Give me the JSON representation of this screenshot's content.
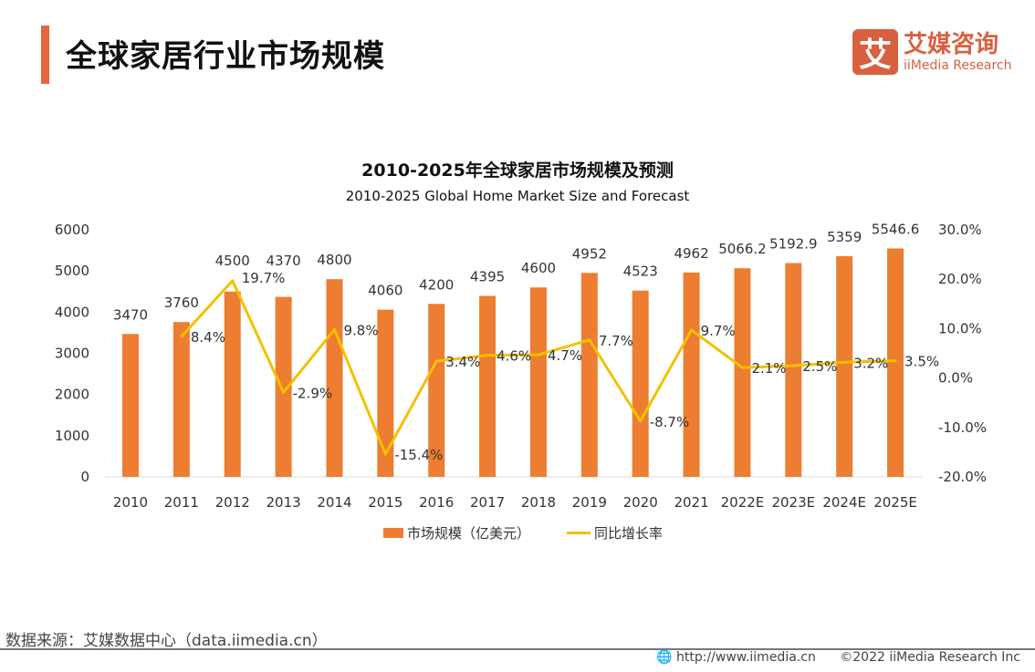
{
  "header": {
    "title": "全球家居行业市场规模",
    "logo_mark": "艾",
    "logo_cn": "艾媒咨询",
    "logo_en": "iiMedia Research"
  },
  "chart_data": {
    "type": "bar+line",
    "title": "2010-2025年全球家居市场规模及预测",
    "subtitle": "2010-2025 Global Home Market Size and Forecast",
    "categories": [
      "2010",
      "2011",
      "2012",
      "2013",
      "2014",
      "2015",
      "2016",
      "2017",
      "2018",
      "2019",
      "2020",
      "2021",
      "2022E",
      "2023E",
      "2024E",
      "2025E"
    ],
    "series": [
      {
        "name": "市场规模（亿美元）",
        "type": "bar",
        "axis": "left",
        "color": "#ed7d31",
        "values": [
          3470,
          3760,
          4500,
          4370,
          4800,
          4060,
          4200,
          4395,
          4600,
          4952,
          4523,
          4962,
          5066.2,
          5192.9,
          5359,
          5546.6
        ],
        "labels": [
          "3470",
          "3760",
          "4500",
          "4370",
          "4800",
          "4060",
          "4200",
          "4395",
          "4600",
          "4952",
          "4523",
          "4962",
          "5066.2",
          "5192.9",
          "5359",
          "5546.6"
        ]
      },
      {
        "name": "同比增长率",
        "type": "line",
        "axis": "right",
        "color": "#f5c000",
        "values": [
          null,
          8.4,
          19.7,
          -2.9,
          9.8,
          -15.4,
          3.4,
          4.6,
          4.7,
          7.7,
          -8.7,
          9.7,
          2.1,
          2.5,
          3.2,
          3.5
        ],
        "labels": [
          null,
          "8.4%",
          "19.7%",
          "-2.9%",
          "9.8%",
          "-15.4%",
          "3.4%",
          "4.6%",
          "4.7%",
          "7.7%",
          "-8.7%",
          "9.7%",
          "2.1%",
          "2.5%",
          "3.2%",
          "3.5%"
        ]
      }
    ],
    "left_axis": {
      "range": [
        0,
        6000
      ],
      "ticks": [
        "0",
        "1000",
        "2000",
        "3000",
        "4000",
        "5000",
        "6000"
      ]
    },
    "right_axis": {
      "range": [
        -20,
        30
      ],
      "ticks": [
        "-20.0%",
        "-10.0%",
        "0.0%",
        "10.0%",
        "20.0%",
        "30.0%"
      ]
    },
    "grid": false,
    "legend_position": "bottom"
  },
  "footer": {
    "source": "数据来源：艾媒数据中心（data.iimedia.cn）",
    "url": "http://www.iimedia.cn",
    "copyright": "©2022  iiMedia Research  Inc"
  }
}
